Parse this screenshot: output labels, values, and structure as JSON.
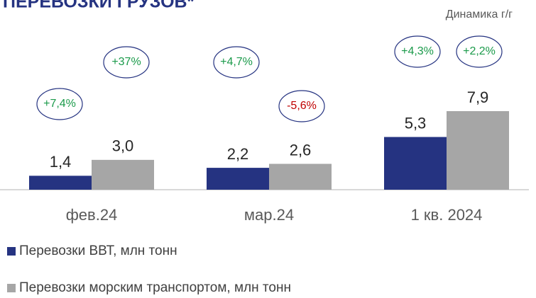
{
  "chart_data": {
    "type": "bar",
    "title": "ПЕРЕВОЗКИ ГРУЗОВ*",
    "subtitle": "Динамика г/г",
    "categories": [
      "фев.24",
      "мар.24",
      "1 кв. 2024"
    ],
    "series": [
      {
        "name": "Перевозки ВВТ, млн тонн",
        "color": "#253381",
        "values": [
          1.4,
          2.2,
          5.3
        ],
        "value_labels": [
          "1,4",
          "2,2",
          "5,3"
        ],
        "growth": [
          {
            "label": "+7,4%",
            "color": "#1a9a4a"
          },
          {
            "label": "+4,7%",
            "color": "#1a9a4a"
          },
          {
            "label": "+4,3%",
            "color": "#1a9a4a"
          }
        ]
      },
      {
        "name": "Перевозки морским транспортом, млн тонн",
        "color": "#a6a6a6",
        "values": [
          3.0,
          2.6,
          7.9
        ],
        "value_labels": [
          "3,0",
          "2,6",
          "7,9"
        ],
        "growth": [
          {
            "label": "+37%",
            "color": "#1a9a4a"
          },
          {
            "label": "-5,6%",
            "color": "#c00000"
          },
          {
            "label": "+2,2%",
            "color": "#1a9a4a"
          }
        ]
      }
    ]
  }
}
